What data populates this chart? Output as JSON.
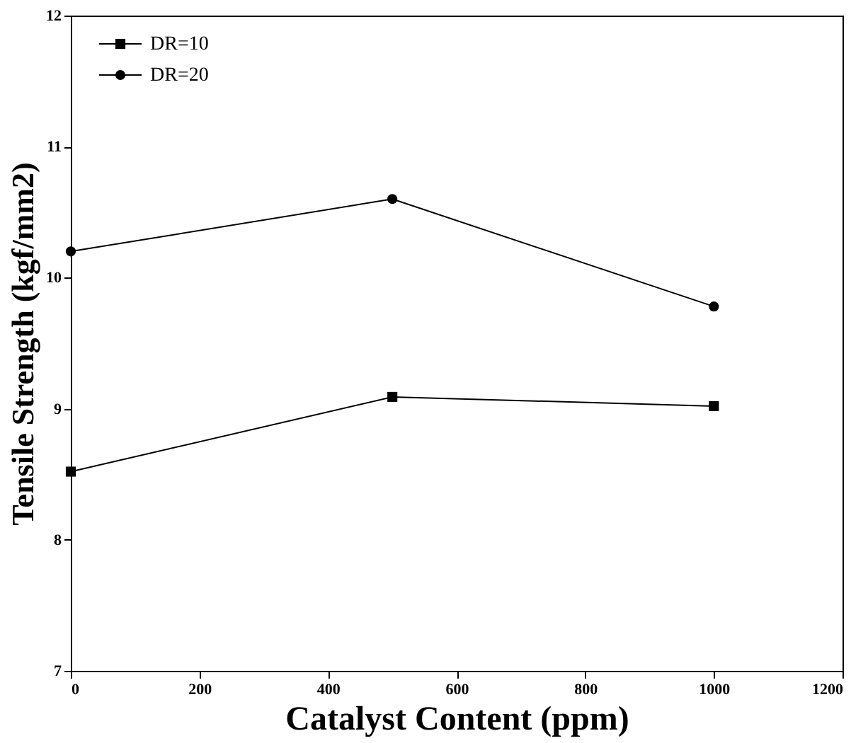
{
  "chart_data": {
    "type": "line",
    "xlabel": "Catalyst Content (ppm)",
    "ylabel": "Tensile Strength (kgf/mm2)",
    "x": [
      0,
      500,
      1000
    ],
    "series": [
      {
        "name": "DR=10",
        "color": "#000000",
        "marker": "square",
        "values": [
          8.52,
          9.09,
          9.02
        ]
      },
      {
        "name": "DR=20",
        "color": "#000000",
        "marker": "circle",
        "values": [
          10.2,
          10.6,
          9.78
        ]
      }
    ],
    "xlim": [
      0,
      1200
    ],
    "xticks": [
      0,
      200,
      400,
      600,
      800,
      1000,
      1200
    ],
    "ylim": [
      7,
      12
    ],
    "yticks": [
      7,
      8,
      9,
      10,
      11,
      12
    ],
    "grid": false,
    "legend": "top left",
    "line_style": "solid"
  }
}
